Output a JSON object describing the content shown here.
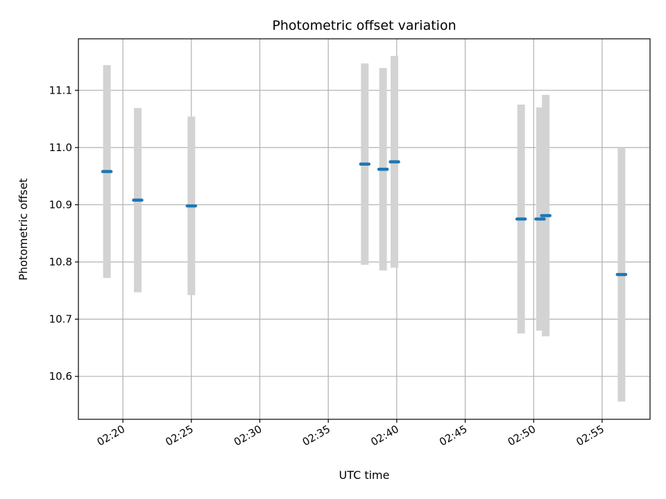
{
  "chart_data": {
    "type": "scatter",
    "title": "Photometric offset variation",
    "xlabel": "UTC time",
    "ylabel": "Photometric offset",
    "x_ticks": [
      "02:20",
      "02:25",
      "02:30",
      "02:35",
      "02:40",
      "02:45",
      "02:50",
      "02:55"
    ],
    "y_ticks": [
      "10.6",
      "10.7",
      "10.8",
      "10.9",
      "11.0",
      "11.1"
    ],
    "xlim": [
      "02:16:45",
      "02:58:30"
    ],
    "ylim": [
      10.525,
      11.19
    ],
    "grid": true,
    "colors": {
      "marker": "#1f77b4",
      "errorbar": "#d3d3d3",
      "grid": "#b0b0b0"
    },
    "points": [
      {
        "x": "02:18:50",
        "y": 10.958,
        "err": 0.186
      },
      {
        "x": "02:21:05",
        "y": 10.908,
        "err": 0.161
      },
      {
        "x": "02:25:00",
        "y": 10.898,
        "err": 0.156
      },
      {
        "x": "02:37:40",
        "y": 10.971,
        "err": 0.176
      },
      {
        "x": "02:39:00",
        "y": 10.962,
        "err": 0.177
      },
      {
        "x": "02:39:50",
        "y": 10.975,
        "err": 0.185
      },
      {
        "x": "02:49:05",
        "y": 10.875,
        "err": 0.2
      },
      {
        "x": "02:50:28",
        "y": 10.875,
        "err": 0.195
      },
      {
        "x": "02:50:53",
        "y": 10.881,
        "err": 0.211
      },
      {
        "x": "02:56:25",
        "y": 10.778,
        "err": 0.222
      }
    ]
  }
}
